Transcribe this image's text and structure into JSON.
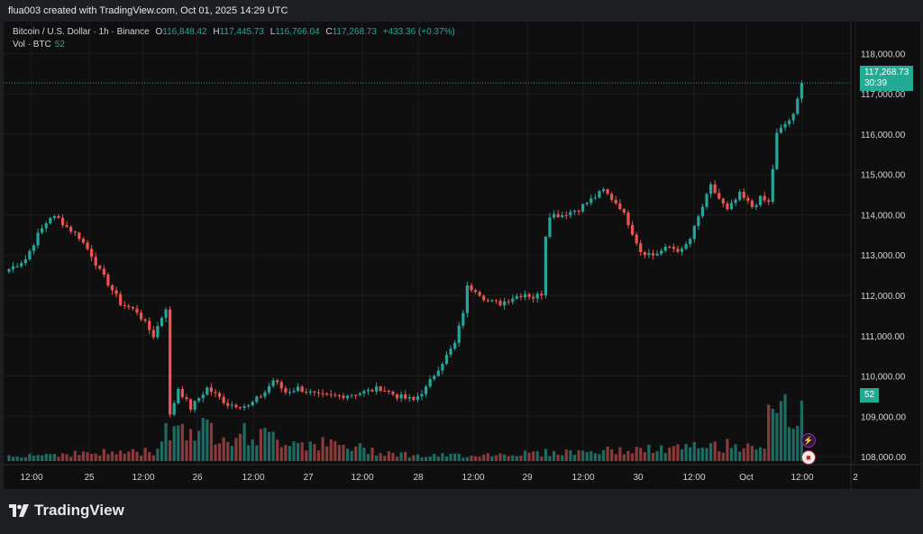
{
  "caption": "flua003 created with TradingView.com, Oct 01, 2025 14:29 UTC",
  "legend": {
    "title": "Bitcoin / U.S. Dollar · 1h · Binance",
    "o_label": "O",
    "o": "116,848.42",
    "h_label": "H",
    "h": "117,445.73",
    "l_label": "L",
    "l": "116,766.04",
    "c_label": "C",
    "c": "117,268.73",
    "change": "+433.36 (+0.37%)",
    "vol_label": "Vol · BTC",
    "vol": "52"
  },
  "price_tag": {
    "price": "117,268.73",
    "countdown": "30:39"
  },
  "vol_tag": "52",
  "watermark": "TradingView",
  "colors": {
    "up": "#26a69a",
    "down": "#ef5350",
    "vol_up": "#1f6b63",
    "vol_down": "#8a3a3a",
    "bg": "#0f0f0f",
    "grid": "#1c1c1c"
  },
  "icons": [
    "tradingview-logo-icon",
    "event-lightning-icon",
    "us-flag-icon"
  ],
  "chart_data": {
    "type": "candlestick",
    "symbol": "Bitcoin / U.S. Dollar",
    "interval": "1h",
    "exchange": "Binance",
    "y_ticks": [
      "118,000.00",
      "117,000.00",
      "116,000.00",
      "115,000.00",
      "114,000.00",
      "113,000.00",
      "112,000.00",
      "111,000.00",
      "110,000.00",
      "109,000.00",
      "108,000.00"
    ],
    "y_tick_values": [
      118000,
      117000,
      116000,
      115000,
      114000,
      113000,
      112000,
      111000,
      110000,
      109000,
      108000
    ],
    "ylim": [
      107800,
      118300
    ],
    "x_ticks": [
      "12:00",
      "25",
      "12:00",
      "26",
      "12:00",
      "27",
      "12:00",
      "28",
      "12:00",
      "29",
      "12:00",
      "30",
      "12:00",
      "Oct",
      "12:00",
      "2"
    ],
    "x_range_hours": [
      -12,
      60
    ],
    "current_price": 117268.73,
    "close_anchors": [
      [
        0,
        112650
      ],
      [
        4,
        112900
      ],
      [
        7,
        113500
      ],
      [
        10,
        113950
      ],
      [
        12,
        113900
      ],
      [
        14,
        113700
      ],
      [
        17,
        113450
      ],
      [
        20,
        113000
      ],
      [
        22,
        112600
      ],
      [
        24,
        112300
      ],
      [
        27,
        111800
      ],
      [
        31,
        111600
      ],
      [
        35,
        111000
      ],
      [
        38,
        111700
      ],
      [
        39,
        109000
      ],
      [
        41,
        109700
      ],
      [
        44,
        109200
      ],
      [
        48,
        109700
      ],
      [
        53,
        109300
      ],
      [
        58,
        109250
      ],
      [
        62,
        109600
      ],
      [
        64,
        109900
      ],
      [
        67,
        109600
      ],
      [
        70,
        109700
      ],
      [
        75,
        109500
      ],
      [
        80,
        109500
      ],
      [
        86,
        109600
      ],
      [
        90,
        109700
      ],
      [
        94,
        109500
      ],
      [
        98,
        109400
      ],
      [
        101,
        109700
      ],
      [
        104,
        110200
      ],
      [
        108,
        110800
      ],
      [
        110,
        111600
      ],
      [
        111,
        112200
      ],
      [
        113,
        112150
      ],
      [
        116,
        111850
      ],
      [
        119,
        111800
      ],
      [
        122,
        111950
      ],
      [
        125,
        112050
      ],
      [
        127,
        111950
      ],
      [
        129,
        112050
      ],
      [
        130,
        113500
      ],
      [
        131,
        114000
      ],
      [
        134,
        114000
      ],
      [
        138,
        114150
      ],
      [
        142,
        114450
      ],
      [
        144,
        114600
      ],
      [
        148,
        114200
      ],
      [
        150,
        113800
      ],
      [
        153,
        113100
      ],
      [
        156,
        113000
      ],
      [
        160,
        113200
      ],
      [
        163,
        113100
      ],
      [
        165,
        113400
      ],
      [
        168,
        114200
      ],
      [
        170,
        114700
      ],
      [
        174,
        114100
      ],
      [
        177,
        114500
      ],
      [
        180,
        114200
      ],
      [
        182,
        114400
      ],
      [
        184,
        114300
      ],
      [
        186,
        116000
      ],
      [
        188,
        116250
      ],
      [
        190,
        116450
      ],
      [
        191,
        116850
      ],
      [
        192,
        117268.73
      ]
    ],
    "volume_anchors": [
      [
        0,
        0.5
      ],
      [
        35,
        0.8
      ],
      [
        39,
        3.0
      ],
      [
        100,
        0.4
      ],
      [
        160,
        1.0
      ],
      [
        183,
        1.5
      ],
      [
        184,
        6.0
      ],
      [
        185,
        3.0
      ],
      [
        188,
        4.0
      ],
      [
        191,
        3.5
      ],
      [
        192,
        3.5
      ]
    ]
  }
}
